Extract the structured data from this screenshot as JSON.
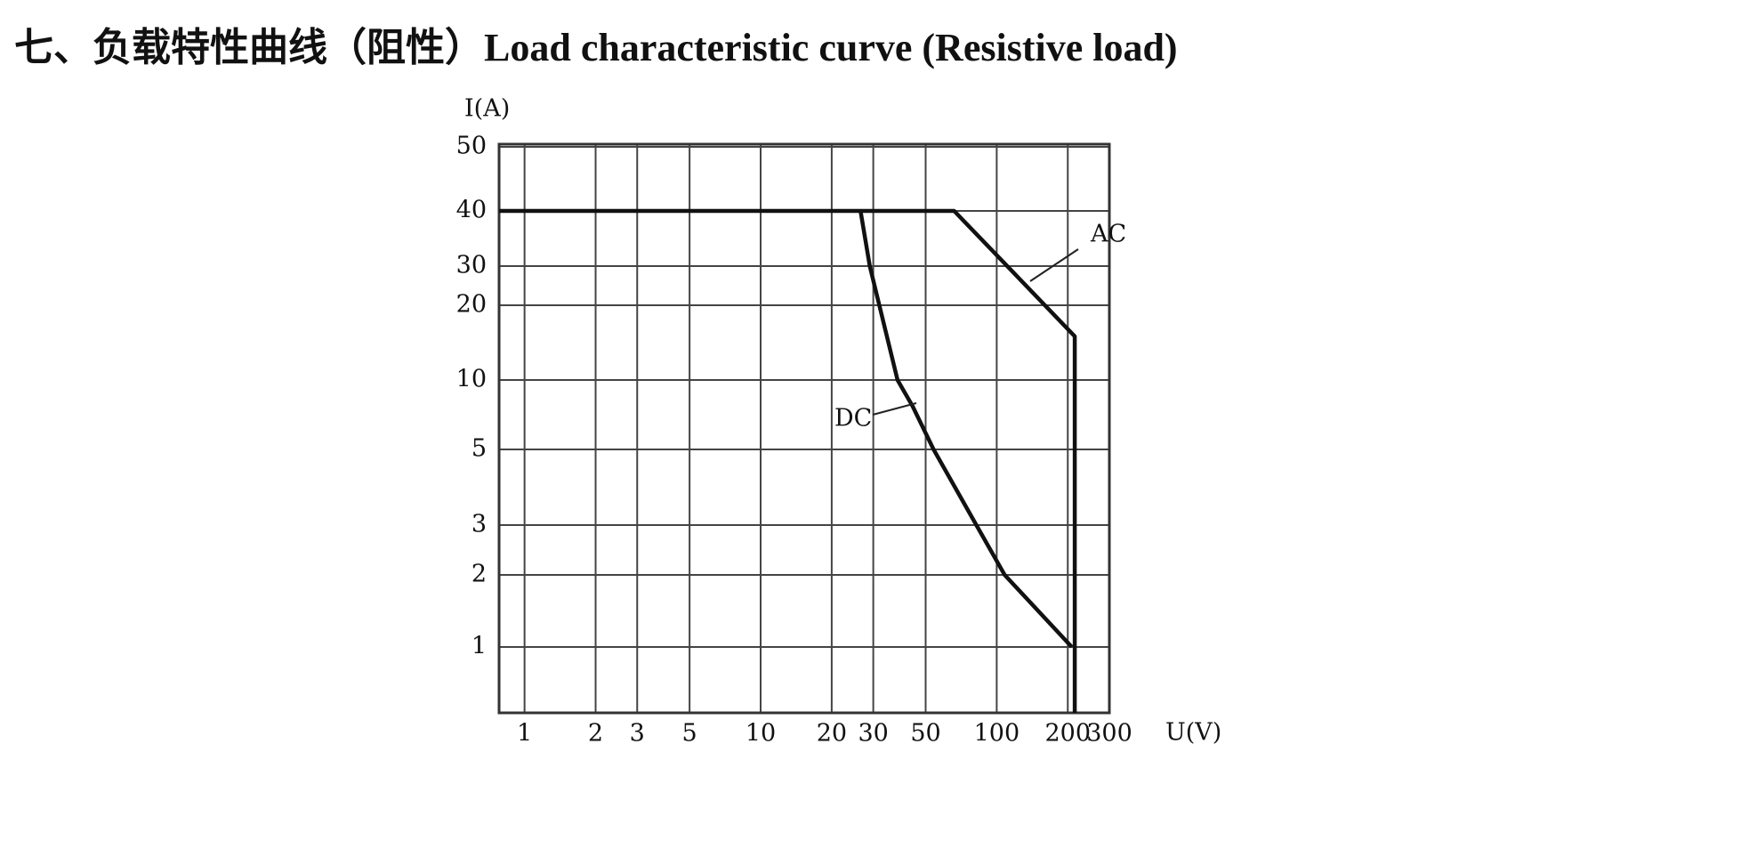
{
  "chart_data": {
    "type": "line",
    "title": "七、负载特性曲线（阻性）Load characteristic curve (Resistive load)",
    "y_label": "I(A)",
    "x_label": "U(V)",
    "xscale": "log",
    "xlim": [
      0.78,
      300
    ],
    "xticks": [
      1,
      2,
      3,
      5,
      10,
      20,
      30,
      50,
      100,
      200,
      300
    ],
    "ylim": [
      0.5,
      50
    ],
    "yticks": [
      1,
      2,
      3,
      5,
      10,
      20,
      30,
      40,
      50
    ],
    "grid": true,
    "series": [
      {
        "name": "AC",
        "color": "#111111",
        "x": [
          0.78,
          66,
          214,
          214
        ],
        "values": [
          40,
          40,
          15,
          0.5
        ]
      },
      {
        "name": "DC",
        "color": "#111111",
        "x": [
          26.5,
          29,
          38,
          44,
          54,
          82,
          108,
          208
        ],
        "values": [
          40,
          30,
          10,
          7.7,
          5,
          3,
          2,
          1
        ]
      }
    ]
  }
}
